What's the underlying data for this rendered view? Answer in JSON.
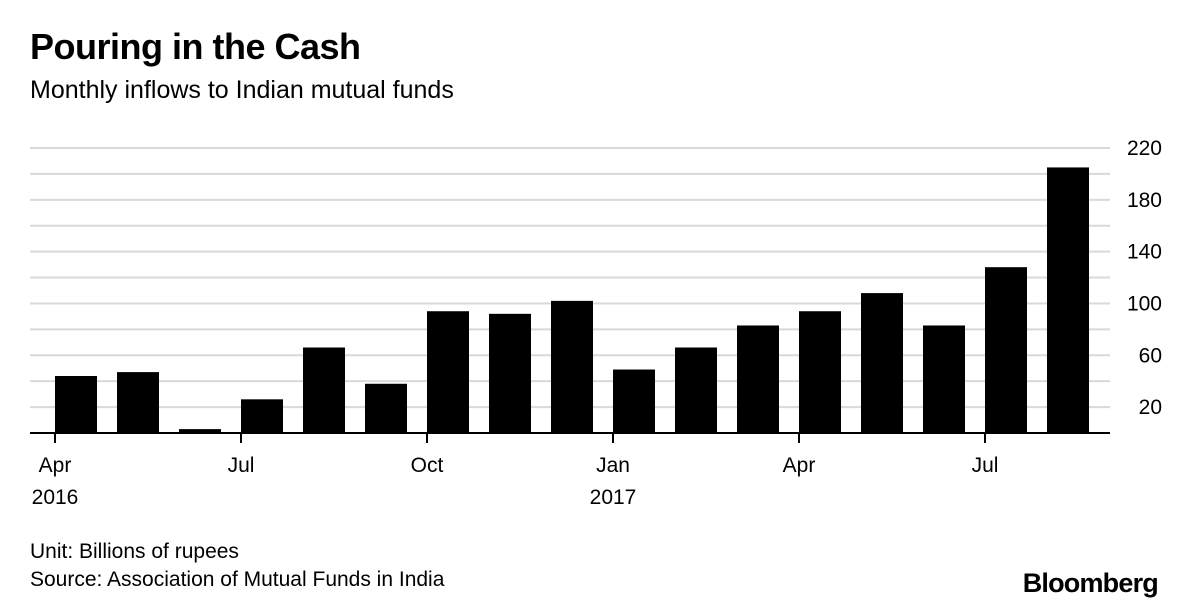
{
  "chart_data": {
    "type": "bar",
    "title": "Pouring in the Cash",
    "subtitle": "Monthly inflows to Indian mutual funds",
    "categories": [
      "Apr 2016",
      "May 2016",
      "Jun 2016",
      "Jul 2016",
      "Aug 2016",
      "Sep 2016",
      "Oct 2016",
      "Nov 2016",
      "Dec 2016",
      "Jan 2017",
      "Feb 2017",
      "Mar 2017",
      "Apr 2017",
      "May 2017",
      "Jun 2017",
      "Jul 2017",
      "Aug 2017"
    ],
    "values": [
      44,
      47,
      3,
      26,
      66,
      38,
      94,
      92,
      102,
      49,
      66,
      83,
      94,
      108,
      83,
      128,
      205
    ],
    "ylim": [
      0,
      220
    ],
    "yticks": [
      20,
      60,
      100,
      140,
      180,
      220
    ],
    "y_minor_step": 20,
    "xticks": [
      {
        "index": 0,
        "label": "Apr",
        "year": "2016"
      },
      {
        "index": 3,
        "label": "Jul",
        "year": ""
      },
      {
        "index": 6,
        "label": "Oct",
        "year": ""
      },
      {
        "index": 9,
        "label": "Jan",
        "year": "2017"
      },
      {
        "index": 12,
        "label": "Apr",
        "year": ""
      },
      {
        "index": 15,
        "label": "Jul",
        "year": ""
      }
    ],
    "bar_color": "#000000",
    "grid_color": "#d9d9d9",
    "grid": true
  },
  "footer": {
    "unit": "Unit: Billions of rupees",
    "source": "Source: Association of Mutual Funds in India",
    "logo": "Bloomberg"
  }
}
